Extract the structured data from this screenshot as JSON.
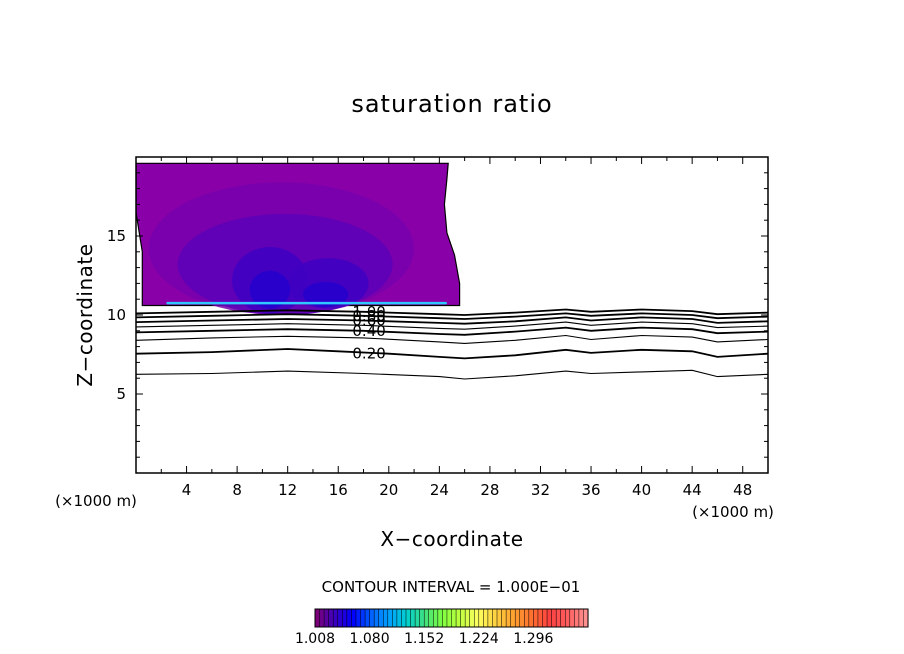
{
  "chart_data": {
    "type": "heatmap",
    "title": "saturation ratio",
    "xlabel": "X−coordinate",
    "ylabel": "Z−coordinate",
    "x_unit_label": "(×1000 m)",
    "z_unit_label": "(×1000 m)",
    "xlim": [
      0,
      50
    ],
    "ylim": [
      0,
      20
    ],
    "x_ticks": [
      4,
      8,
      12,
      16,
      20,
      24,
      28,
      32,
      36,
      40,
      44,
      48
    ],
    "y_ticks": [
      5,
      10,
      15
    ],
    "x_tick_labels": [
      "4",
      "8",
      "12",
      "16",
      "20",
      "24",
      "28",
      "32",
      "36",
      "40",
      "44",
      "48"
    ],
    "y_tick_labels": [
      "5",
      "10",
      "15"
    ],
    "contour_interval_label": "CONTOUR INTERVAL = 1.000E−01",
    "contour_lines": [
      {
        "level": 0.1,
        "label": "",
        "points": [
          [
            0,
            6.25
          ],
          [
            6,
            6.3
          ],
          [
            12,
            6.45
          ],
          [
            18,
            6.3
          ],
          [
            24,
            6.1
          ],
          [
            26,
            5.95
          ],
          [
            30,
            6.15
          ],
          [
            34,
            6.45
          ],
          [
            36,
            6.3
          ],
          [
            40,
            6.4
          ],
          [
            44,
            6.5
          ],
          [
            46,
            6.1
          ],
          [
            50,
            6.25
          ]
        ]
      },
      {
        "level": 0.2,
        "label": "0.20",
        "points": [
          [
            0,
            7.55
          ],
          [
            6,
            7.65
          ],
          [
            12,
            7.85
          ],
          [
            16,
            7.7
          ],
          [
            20,
            7.55
          ],
          [
            24,
            7.35
          ],
          [
            26,
            7.25
          ],
          [
            30,
            7.45
          ],
          [
            34,
            7.8
          ],
          [
            36,
            7.6
          ],
          [
            40,
            7.8
          ],
          [
            44,
            7.7
          ],
          [
            46,
            7.35
          ],
          [
            50,
            7.55
          ]
        ]
      },
      {
        "level": 0.3,
        "label": "",
        "points": [
          [
            0,
            8.4
          ],
          [
            6,
            8.55
          ],
          [
            12,
            8.65
          ],
          [
            18,
            8.55
          ],
          [
            24,
            8.3
          ],
          [
            26,
            8.2
          ],
          [
            30,
            8.4
          ],
          [
            34,
            8.7
          ],
          [
            36,
            8.45
          ],
          [
            40,
            8.7
          ],
          [
            44,
            8.6
          ],
          [
            46,
            8.3
          ],
          [
            50,
            8.45
          ]
        ]
      },
      {
        "level": 0.4,
        "label": "0.40",
        "points": [
          [
            0,
            8.9
          ],
          [
            6,
            9.0
          ],
          [
            12,
            9.1
          ],
          [
            18,
            9.0
          ],
          [
            24,
            8.8
          ],
          [
            26,
            8.75
          ],
          [
            30,
            8.95
          ],
          [
            34,
            9.2
          ],
          [
            36,
            9.0
          ],
          [
            40,
            9.2
          ],
          [
            44,
            9.1
          ],
          [
            46,
            8.85
          ],
          [
            50,
            8.95
          ]
        ]
      },
      {
        "level": 0.5,
        "label": "",
        "points": [
          [
            0,
            9.25
          ],
          [
            6,
            9.35
          ],
          [
            12,
            9.45
          ],
          [
            18,
            9.35
          ],
          [
            24,
            9.15
          ],
          [
            26,
            9.1
          ],
          [
            30,
            9.3
          ],
          [
            34,
            9.55
          ],
          [
            36,
            9.35
          ],
          [
            40,
            9.55
          ],
          [
            44,
            9.45
          ],
          [
            46,
            9.2
          ],
          [
            50,
            9.3
          ]
        ]
      },
      {
        "level": 0.6,
        "label": "0.60",
        "points": [
          [
            0,
            9.55
          ],
          [
            6,
            9.65
          ],
          [
            12,
            9.75
          ],
          [
            18,
            9.65
          ],
          [
            24,
            9.5
          ],
          [
            26,
            9.45
          ],
          [
            30,
            9.6
          ],
          [
            34,
            9.85
          ],
          [
            36,
            9.65
          ],
          [
            40,
            9.85
          ],
          [
            44,
            9.75
          ],
          [
            46,
            9.5
          ],
          [
            50,
            9.6
          ]
        ]
      },
      {
        "level": 0.8,
        "label": "0.80",
        "points": [
          [
            0,
            9.85
          ],
          [
            6,
            9.95
          ],
          [
            12,
            10.05
          ],
          [
            18,
            9.95
          ],
          [
            24,
            9.8
          ],
          [
            26,
            9.75
          ],
          [
            30,
            9.9
          ],
          [
            34,
            10.1
          ],
          [
            36,
            9.95
          ],
          [
            40,
            10.1
          ],
          [
            44,
            10.0
          ],
          [
            46,
            9.8
          ],
          [
            50,
            9.9
          ]
        ]
      },
      {
        "level": 1.0,
        "label": "1.00",
        "points": [
          [
            0,
            10.1
          ],
          [
            6,
            10.2
          ],
          [
            12,
            10.3
          ],
          [
            18,
            10.2
          ],
          [
            24,
            10.05
          ],
          [
            26,
            10.0
          ],
          [
            30,
            10.15
          ],
          [
            34,
            10.35
          ],
          [
            36,
            10.2
          ],
          [
            40,
            10.35
          ],
          [
            44,
            10.25
          ],
          [
            46,
            10.05
          ],
          [
            50,
            10.15
          ]
        ]
      }
    ],
    "supersaturated_region": {
      "boundary": [
        [
          0,
          19.6
        ],
        [
          0,
          16.5
        ],
        [
          0.5,
          14.0
        ],
        [
          0.5,
          10.6
        ],
        [
          25.6,
          10.6
        ],
        [
          25.6,
          12.0
        ],
        [
          25.2,
          13.8
        ],
        [
          24.6,
          15.2
        ],
        [
          24.4,
          17.0
        ],
        [
          24.6,
          18.6
        ],
        [
          24.7,
          19.6
        ]
      ],
      "color_levels": [
        {
          "value": 1.008,
          "color": "#8a00a8"
        },
        {
          "value": 1.03,
          "color": "#7600ad"
        },
        {
          "value": 1.05,
          "color": "#5c00b8"
        },
        {
          "value": 1.07,
          "color": "#3f00c2"
        },
        {
          "value": 1.09,
          "color": "#2400cc"
        },
        {
          "value": 1.2,
          "color": "#2fc8ff"
        }
      ]
    },
    "colorbar": {
      "min": 1.008,
      "max": 1.368,
      "tick_values": [
        1.008,
        1.08,
        1.152,
        1.224,
        1.296
      ],
      "tick_labels": [
        "1.008",
        "1.080",
        "1.152",
        "1.224",
        "1.296"
      ],
      "colors": [
        "#7a007a",
        "#3a00c0",
        "#0000ff",
        "#0060ff",
        "#00a0ff",
        "#00d0d0",
        "#40e080",
        "#80ff40",
        "#c0ff40",
        "#ffff60",
        "#ffd040",
        "#ffa030",
        "#ff7030",
        "#ff4040",
        "#ff6060",
        "#ff9090"
      ]
    },
    "grid": false,
    "legend": "colorbar-bottom"
  }
}
